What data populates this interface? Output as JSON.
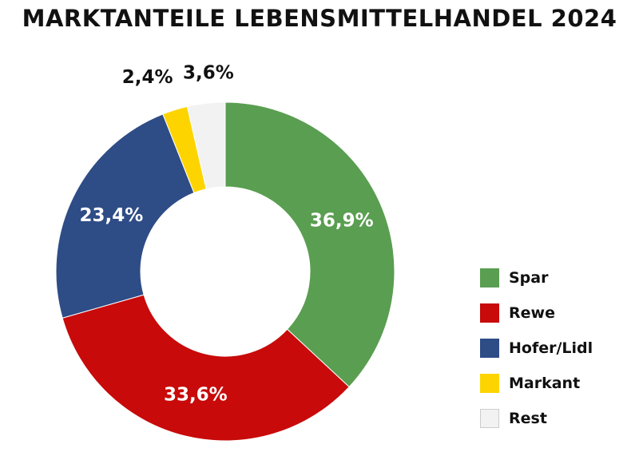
{
  "chart_data": {
    "type": "pie",
    "variant": "donut",
    "title": "MARKTANTEILE LEBENSMITTELHANDEL 2024",
    "categories": [
      "Spar",
      "Rewe",
      "Hofer/Lidl",
      "Markant",
      "Rest"
    ],
    "values": [
      36.9,
      33.6,
      23.4,
      2.4,
      3.6
    ],
    "labels": [
      "36,9%",
      "33,6%",
      "23,4%",
      "2,4%",
      "3,6%"
    ],
    "colors": [
      "#5a9e51",
      "#c80a0a",
      "#2e4c86",
      "#fdd400",
      "#f2f2f2"
    ],
    "label_colors": [
      "#ffffff",
      "#ffffff",
      "#ffffff",
      "#111111",
      "#111111"
    ],
    "label_placement": [
      "inside",
      "inside",
      "inside",
      "outside",
      "outside"
    ],
    "legend_position": "right"
  }
}
